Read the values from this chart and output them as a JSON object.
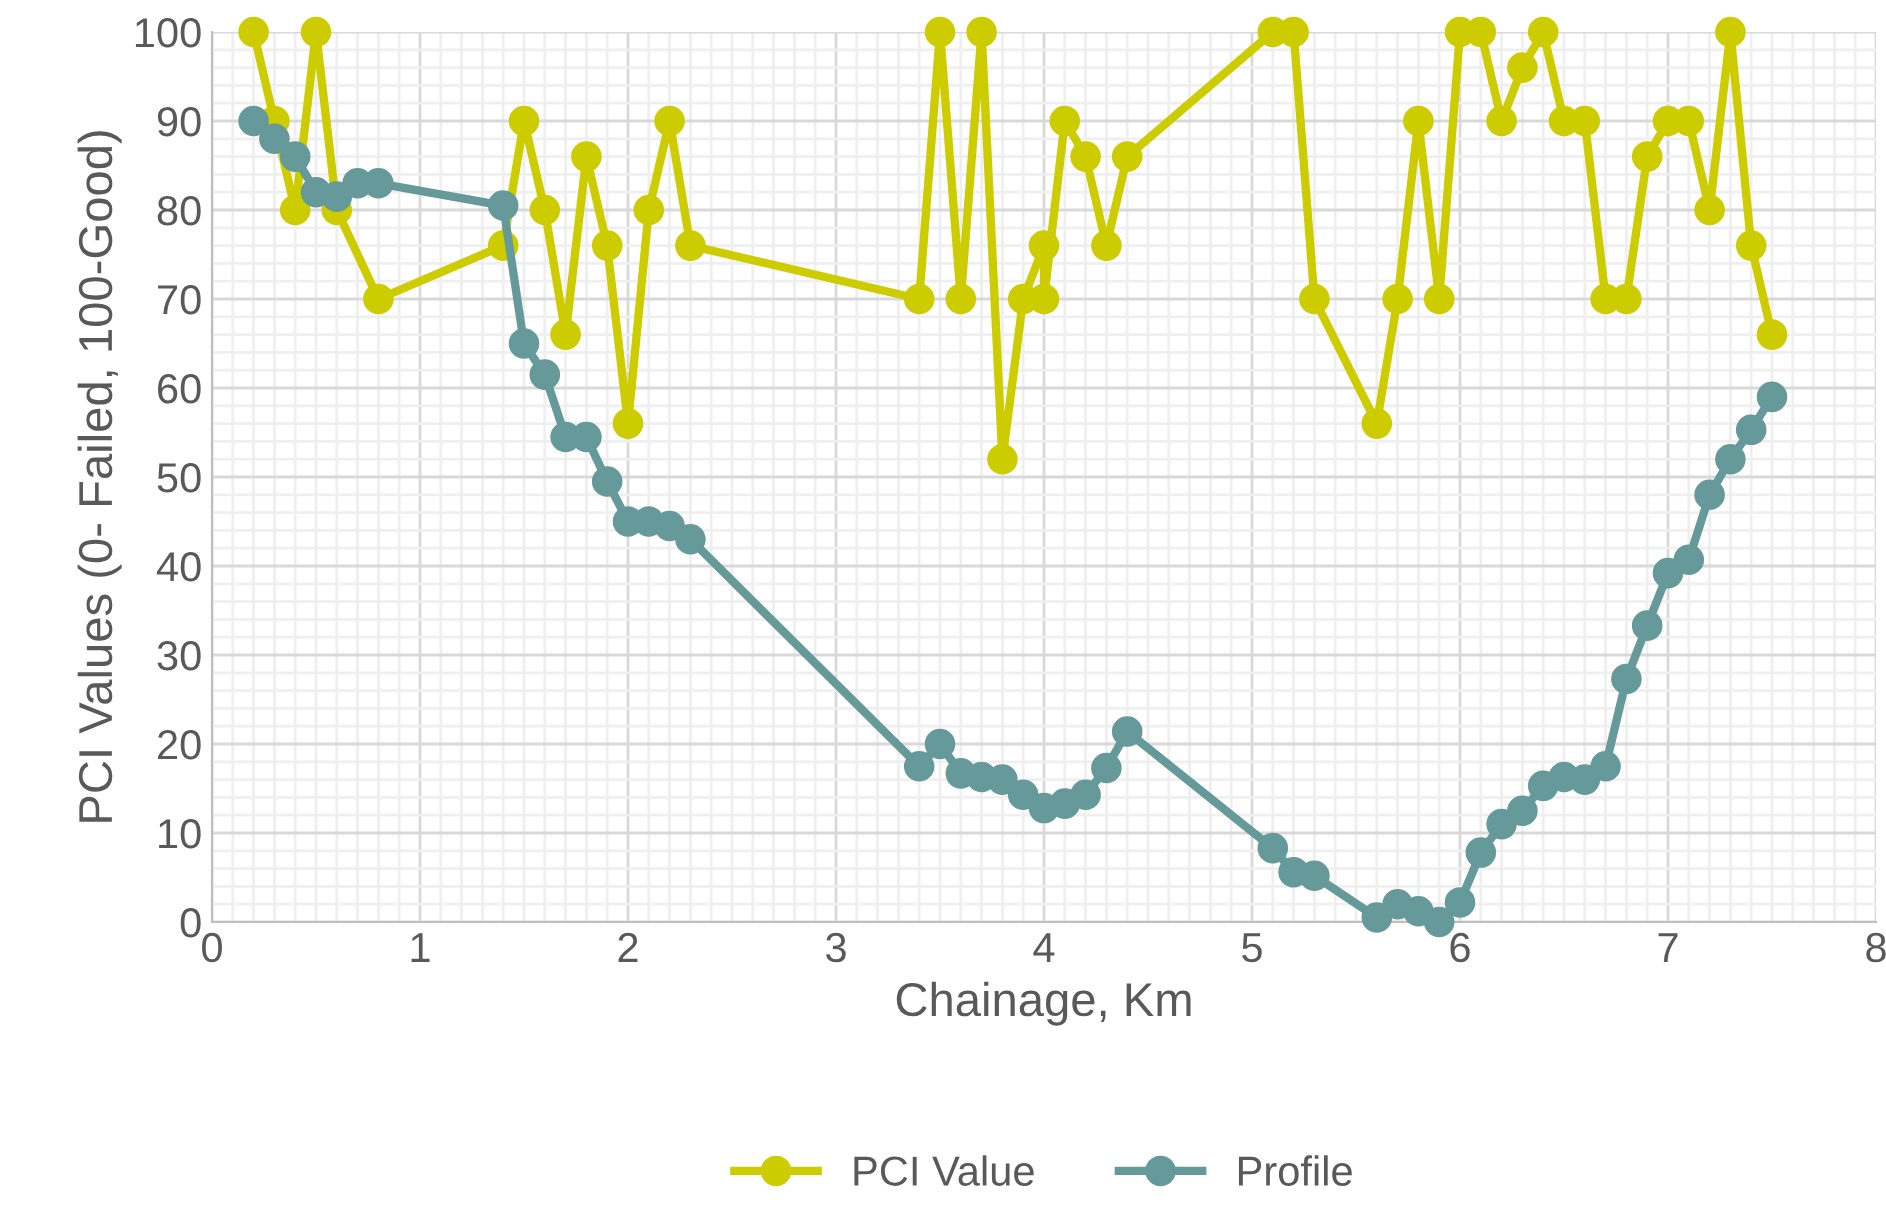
{
  "chart_data": {
    "type": "line",
    "xlabel": "Chainage, Km",
    "ylabel": "PCI Values (0- Failed, 100-Good)",
    "xlim": [
      0,
      8
    ],
    "xticks": [
      0,
      1,
      2,
      3,
      4,
      5,
      6,
      7,
      8
    ],
    "ylim": [
      0,
      100
    ],
    "yticks": [
      0,
      10,
      20,
      30,
      40,
      50,
      60,
      70,
      80,
      90,
      100
    ],
    "grid": true,
    "legend": "bottom",
    "marker": "circle",
    "line_style": "solid",
    "series": [
      {
        "name": "PCI Value",
        "color": "#cccc00",
        "x": [
          0.2,
          0.3,
          0.4,
          0.5,
          0.6,
          0.8,
          1.4,
          1.5,
          1.6,
          1.7,
          1.8,
          1.9,
          2.0,
          2.1,
          2.2,
          2.3,
          3.4,
          3.5,
          3.6,
          3.7,
          3.8,
          3.9,
          4.0,
          4.0,
          4.1,
          4.2,
          4.3,
          4.4,
          5.1,
          5.2,
          5.3,
          5.6,
          5.7,
          5.8,
          5.9,
          6.0,
          6.1,
          6.2,
          6.3,
          6.4,
          6.5,
          6.6,
          6.7,
          6.8,
          6.9,
          7.0,
          7.1,
          7.2,
          7.3,
          7.4,
          7.5
        ],
        "values": [
          100,
          90,
          80,
          100,
          80,
          70,
          76,
          90,
          80,
          66,
          86,
          76,
          56,
          80,
          90,
          76,
          70,
          100,
          70,
          100,
          52,
          70,
          76,
          70,
          90,
          86,
          76,
          86,
          100,
          100,
          70,
          56,
          70,
          90,
          70,
          100,
          100,
          90,
          96,
          100,
          90,
          90,
          70,
          70,
          86,
          90,
          90,
          80,
          100,
          76,
          66
        ]
      },
      {
        "name": "Profile",
        "color": "#669999",
        "x": [
          0.2,
          0.3,
          0.4,
          0.5,
          0.6,
          0.7,
          0.8,
          1.4,
          1.5,
          1.6,
          1.7,
          1.8,
          1.9,
          2.0,
          2.1,
          2.2,
          2.3,
          3.4,
          3.5,
          3.6,
          3.7,
          3.8,
          3.9,
          4.0,
          4.1,
          4.2,
          4.3,
          4.4,
          5.1,
          5.2,
          5.3,
          5.6,
          5.7,
          5.8,
          5.9,
          6.0,
          6.1,
          6.2,
          6.3,
          6.4,
          6.5,
          6.6,
          6.7,
          6.8,
          6.9,
          7.0,
          7.1,
          7.2,
          7.3,
          7.4,
          7.5
        ],
        "values": [
          90,
          88,
          86,
          82,
          81.5,
          83,
          83,
          80.5,
          65,
          61.5,
          54.5,
          54.5,
          49.5,
          45,
          45,
          44.5,
          43,
          17.5,
          20,
          16.7,
          16.3,
          16,
          14.3,
          12.8,
          13.3,
          14.3,
          17.3,
          21.4,
          8.3,
          5.6,
          5.2,
          0.5,
          2,
          1.2,
          0,
          2.2,
          7.8,
          11,
          12.5,
          15.3,
          16.3,
          16,
          17.5,
          27.3,
          33.3,
          39.2,
          40.7,
          48,
          52,
          55.3,
          59
        ]
      }
    ]
  }
}
